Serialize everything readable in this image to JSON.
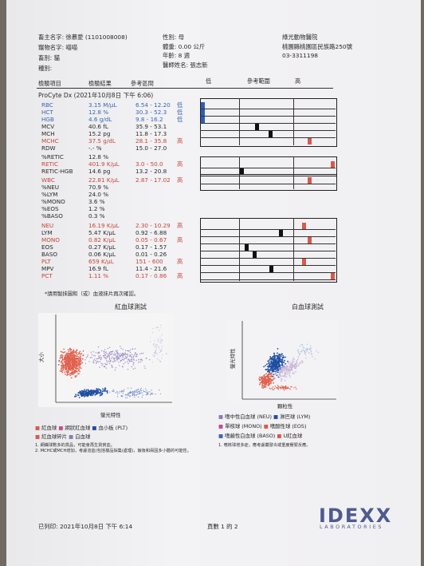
{
  "header": {
    "owner": "畜主名字: 徐慕愛 (1101008008)",
    "pet_name": "寵物名字: 喵喵",
    "species": "畜別: 貓",
    "breed": "種別:",
    "sex": "性別: 母",
    "weight": "體重: 0.00 公斤",
    "age": "年齡: 8 週",
    "vet": "醫師姓名: 張志新",
    "clinic_name": "綠光動物醫院",
    "clinic_address": "桃園縣桃園區民族路250號",
    "clinic_phone": "03-3311198"
  },
  "columns": {
    "item": "檢驗項目",
    "result": "檢驗結果",
    "reference": "參考區間",
    "low": "低",
    "ref_range": "參考範圍",
    "high": "高"
  },
  "instrument": "ProCyte Dx (2021年10月8日 下午 6:06)",
  "results": [
    {
      "name": "RBC",
      "value": "3.15 M/µL",
      "ref": "6.54 - 12.20",
      "flag": "低",
      "color": "blue",
      "bar": {
        "group": 0,
        "pos": 0.0,
        "color": "#2d5fb3"
      }
    },
    {
      "name": "HCT",
      "value": "12.8 %",
      "ref": "30.3 - 52.3",
      "flag": "低",
      "color": "blue",
      "bar": {
        "group": 0,
        "pos": 0.0,
        "color": "#2d5fb3"
      }
    },
    {
      "name": "HGB",
      "value": "4.6 g/dL",
      "ref": "9.8 - 16.2",
      "flag": "低",
      "color": "blue",
      "bar": {
        "group": 0,
        "pos": 0.0,
        "color": "#2d5fb3"
      }
    },
    {
      "name": "MCV",
      "value": "40.6 fL",
      "ref": "35.9 - 53.1",
      "flag": "",
      "color": "",
      "bar": {
        "group": 0,
        "pos": 0.42,
        "color": "#111"
      }
    },
    {
      "name": "MCH",
      "value": "15.2 pg",
      "ref": "11.8 - 17.3",
      "flag": "",
      "color": "",
      "bar": {
        "group": 0,
        "pos": 0.52,
        "color": "#111"
      }
    },
    {
      "name": "MCHC",
      "value": "37.5 g/dL",
      "ref": "28.1 - 35.8",
      "flag": "高",
      "color": "red",
      "bar": {
        "group": 0,
        "pos": 0.82,
        "color": "#d8594b"
      }
    },
    {
      "name": "RDW",
      "value": "-.- %",
      "ref": "15.0 - 27.0",
      "flag": "",
      "color": "",
      "bar": null
    },
    {
      "name": "%RETIC",
      "value": "12.8 %",
      "ref": "",
      "flag": "",
      "color": "",
      "bar": null
    },
    {
      "name": "RETIC",
      "value": "401.9 K/µL",
      "ref": "3.0 - 50.0",
      "flag": "高",
      "color": "red",
      "bar": {
        "group": 1,
        "pos": 1.0,
        "color": "#d8594b"
      }
    },
    {
      "name": "RETIC-HGB",
      "value": "14.6 pg",
      "ref": "13.2 - 20.8",
      "flag": "",
      "color": "",
      "bar": {
        "group": 1,
        "pos": 0.3,
        "color": "#111"
      }
    },
    {
      "name": "WBC",
      "value": "22.81 K/µL",
      "ref": "2.87 - 17.02",
      "flag": "高",
      "color": "red",
      "bar": {
        "group": 2,
        "pos": 0.82,
        "color": "#d8594b"
      }
    },
    {
      "name": "%NEU",
      "value": "70.9 %",
      "ref": "",
      "flag": "",
      "color": "",
      "bar": null
    },
    {
      "name": "%LYM",
      "value": "24.0 %",
      "ref": "",
      "flag": "",
      "color": "",
      "bar": null
    },
    {
      "name": "%MONO",
      "value": "3.6 %",
      "ref": "",
      "flag": "",
      "color": "",
      "bar": null
    },
    {
      "name": "%EOS",
      "value": "1.2 %",
      "ref": "",
      "flag": "",
      "color": "",
      "bar": null
    },
    {
      "name": "%BASO",
      "value": "0.3 %",
      "ref": "",
      "flag": "",
      "color": "",
      "bar": null
    },
    {
      "name": "NEU",
      "value": "16.19 K/µL",
      "ref": "2.30 - 10.29",
      "flag": "高",
      "color": "red",
      "bar": {
        "group": 3,
        "pos": 0.78,
        "color": "#d8594b"
      }
    },
    {
      "name": "LYM",
      "value": "5.47 K/µL",
      "ref": "0.92 - 6.88",
      "flag": "",
      "color": "",
      "bar": {
        "group": 3,
        "pos": 0.6,
        "color": "#111"
      }
    },
    {
      "name": "MONO",
      "value": "0.82 K/µL",
      "ref": "0.05 - 0.67",
      "flag": "高",
      "color": "red",
      "bar": {
        "group": 3,
        "pos": 0.82,
        "color": "#d8594b"
      }
    },
    {
      "name": "EOS",
      "value": "0.27 K/µL",
      "ref": "0.17 - 1.57",
      "flag": "",
      "color": "",
      "bar": {
        "group": 3,
        "pos": 0.34,
        "color": "#111"
      }
    },
    {
      "name": "BASO",
      "value": "0.06 K/µL",
      "ref": "0.01 - 0.26",
      "flag": "",
      "color": "",
      "bar": {
        "group": 3,
        "pos": 0.4,
        "color": "#111"
      }
    },
    {
      "name": "PLT",
      "value": "659 K/µL",
      "ref": "151 - 600",
      "flag": "高",
      "color": "red",
      "bar": {
        "group": 3,
        "pos": 0.78,
        "color": "#d8594b"
      }
    },
    {
      "name": "MPV",
      "value": "16.9 fL",
      "ref": "11.4 - 21.6",
      "flag": "",
      "color": "",
      "bar": {
        "group": 3,
        "pos": 0.53,
        "color": "#111"
      }
    },
    {
      "name": "PCT",
      "value": "1.11 %",
      "ref": "0.17 - 0.86",
      "flag": "高",
      "color": "red",
      "bar": {
        "group": 3,
        "pos": 1.0,
        "color": "#d8594b"
      }
    }
  ],
  "note": "*請用製抹圖和（或）血液抹片再次確認。",
  "rbc_plot": {
    "title": "紅血球測試",
    "y_label": "大小",
    "x_label": "螢光特性",
    "legend": [
      "紅血球",
      "網狀紅血球",
      "血小板 (PLT)",
      "紅血球碎片",
      "白血球"
    ],
    "legend_colors": [
      "#d8594b",
      "#c64a8b",
      "#1f4fa3",
      "#d8594b",
      "#8a7cb6"
    ],
    "notes": [
      "1. 網織球數多的貨品，可能會再生質貧血。",
      "2. MCHC或MCH增加，考慮溶血(包括樣品採集(處理)，飯後和兩因多小體的可能性。"
    ]
  },
  "wbc_plot": {
    "title": "白血球測試",
    "y_label": "螢光特性",
    "x_label": "顆粒性",
    "legend": [
      "嗜中性白血球 (NEU)",
      "淋巴球 (LYM)",
      "單核球 (MONO)",
      "嗜酸性球 (EOS)",
      "嗜鹼性白血球 (BASO)",
      "U紅血球"
    ],
    "legend_colors": [
      "#8a7cb6",
      "#1f4fa3",
      "#c64a8b",
      "#d8594b",
      "#3a66b5",
      "#d8594b"
    ],
    "notes": [
      "1. 嗜核球增多症，應考慮嚴發炎或重度壓緊反應。"
    ]
  },
  "footer": {
    "printed": "已列印: 2021年10月8日 下午 6:14",
    "page": "頁數 1 的 2",
    "logo_main": "IDEXX",
    "logo_sub": "LABORATORIES"
  }
}
